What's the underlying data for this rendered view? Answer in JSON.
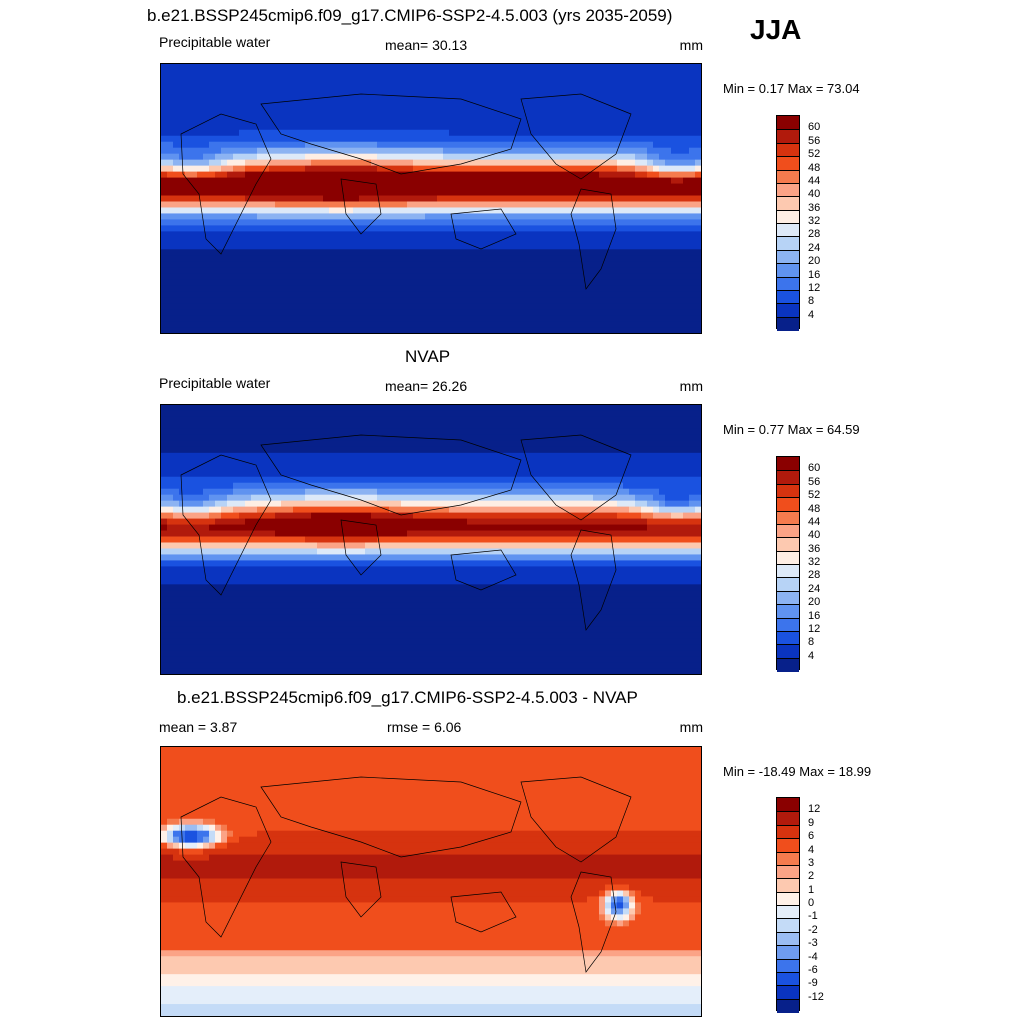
{
  "season": "JJA",
  "panels": [
    {
      "id": "model",
      "title": "b.e21.BSSP245cmip6.f09_g17.CMIP6-SSP2-4.5.003 (yrs 2035-2059)",
      "left_label": "Precipitable water",
      "center_label": "mean=  30.13",
      "units": "mm",
      "minmax": "Min =   0.17 Max =  73.04",
      "colorbar": {
        "labels": [
          "60",
          "56",
          "52",
          "48",
          "44",
          "40",
          "36",
          "32",
          "28",
          "24",
          "20",
          "16",
          "12",
          "8",
          "4"
        ],
        "colors": [
          "#8a0000",
          "#b11a0c",
          "#d6330f",
          "#f04e1c",
          "#f57b4e",
          "#fba386",
          "#fdc9b0",
          "#feeee4",
          "#dde9f8",
          "#b7d3f6",
          "#8cb3f2",
          "#6093f0",
          "#3c74ec",
          "#1a52e0",
          "#0a34c0",
          "#07208a"
        ]
      },
      "map_field": "pw_model"
    },
    {
      "id": "obs",
      "title": "NVAP",
      "left_label": "Precipitable water",
      "center_label": "mean=  26.26",
      "units": "mm",
      "minmax": "Min =   0.77 Max =  64.59",
      "colorbar": {
        "labels": [
          "60",
          "56",
          "52",
          "48",
          "44",
          "40",
          "36",
          "32",
          "28",
          "24",
          "20",
          "16",
          "12",
          "8",
          "4"
        ],
        "colors": [
          "#8a0000",
          "#b11a0c",
          "#d6330f",
          "#f04e1c",
          "#f57b4e",
          "#fba386",
          "#fdc9b0",
          "#feeee4",
          "#dde9f8",
          "#b7d3f6",
          "#8cb3f2",
          "#6093f0",
          "#3c74ec",
          "#1a52e0",
          "#0a34c0",
          "#07208a"
        ]
      },
      "map_field": "pw_obs"
    },
    {
      "id": "diff",
      "title": "b.e21.BSSP245cmip6.f09_g17.CMIP6-SSP2-4.5.003 - NVAP",
      "left_label": "mean =   3.87",
      "center_label": "rmse =   6.06",
      "units": "mm",
      "minmax": "Min = -18.49 Max =  18.99",
      "colorbar": {
        "labels": [
          "12",
          "9",
          "6",
          "4",
          "3",
          "2",
          "1",
          "0",
          "-1",
          "-2",
          "-3",
          "-4",
          "-6",
          "-9",
          "-12"
        ],
        "colors": [
          "#8a0000",
          "#b11a0c",
          "#d6330f",
          "#f04e1c",
          "#f57b4e",
          "#fba386",
          "#fdc9b0",
          "#fff1e8",
          "#e4eefa",
          "#c4dbf7",
          "#9bbdf3",
          "#6f9cf0",
          "#3c74ec",
          "#1a52e0",
          "#0a34c0",
          "#07208a"
        ]
      },
      "map_field": "pw_diff"
    }
  ]
}
